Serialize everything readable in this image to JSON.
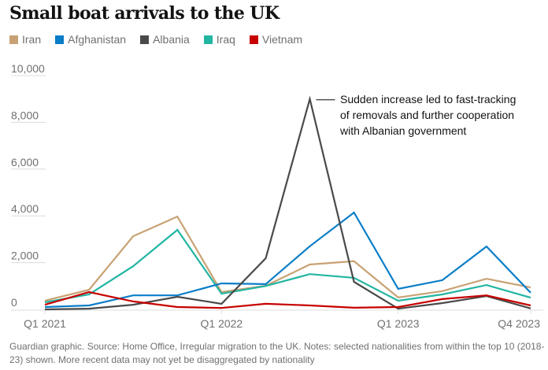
{
  "chart_data": {
    "type": "line",
    "title": "Small boat arrivals to the UK",
    "xlabel": "",
    "ylabel": "",
    "ylim": [
      0,
      10000
    ],
    "yticks": [
      0,
      2000,
      4000,
      6000,
      8000,
      10000
    ],
    "ytick_labels": [
      "0",
      "2,000",
      "4,000",
      "6,000",
      "8,000",
      "10,000"
    ],
    "x": [
      "Q1 2021",
      "Q2 2021",
      "Q3 2021",
      "Q4 2021",
      "Q1 2022",
      "Q2 2022",
      "Q3 2022",
      "Q4 2022",
      "Q1 2023",
      "Q2 2023",
      "Q3 2023",
      "Q4 2023"
    ],
    "xtick_labels": [
      {
        "label": "Q1 2021",
        "index": 0
      },
      {
        "label": "Q1 2022",
        "index": 4
      },
      {
        "label": "Q1 2023",
        "index": 8
      },
      {
        "label": "Q4 2023",
        "index": 11
      }
    ],
    "grid": true,
    "legend_position": "top-left",
    "series": [
      {
        "name": "Iran",
        "color": "#c8a274",
        "values": [
          370,
          840,
          3130,
          3970,
          740,
          1010,
          1920,
          2060,
          510,
          780,
          1310,
          940
        ]
      },
      {
        "name": "Afghanistan",
        "color": "#0a7dc8",
        "values": [
          100,
          170,
          600,
          600,
          1110,
          1080,
          2700,
          4140,
          880,
          1250,
          2690,
          710
        ]
      },
      {
        "name": "Albania",
        "color": "#4a4a4a",
        "values": [
          0,
          30,
          200,
          540,
          240,
          2190,
          9000,
          1180,
          30,
          270,
          570,
          40
        ]
      },
      {
        "name": "Iraq",
        "color": "#22b5a2",
        "values": [
          300,
          640,
          1850,
          3400,
          670,
          1000,
          1510,
          1350,
          370,
          640,
          1040,
          500
        ]
      },
      {
        "name": "Vietnam",
        "color": "#c70000",
        "values": [
          200,
          740,
          340,
          100,
          60,
          240,
          170,
          70,
          100,
          440,
          600,
          170
        ]
      }
    ],
    "annotations": [
      {
        "text": "Sudden increase led to fast-tracking of removals and further cooperation with Albanian government",
        "series": "Albania",
        "x": "Q3 2022",
        "value": 9000
      }
    ]
  },
  "footer": {
    "text": "Guardian graphic. Source: Home Office, Irregular migration to the UK. Notes: selected nationalities from within the top 10 (2018-23) shown. More recent data may not yet be disaggregated by nationality"
  }
}
